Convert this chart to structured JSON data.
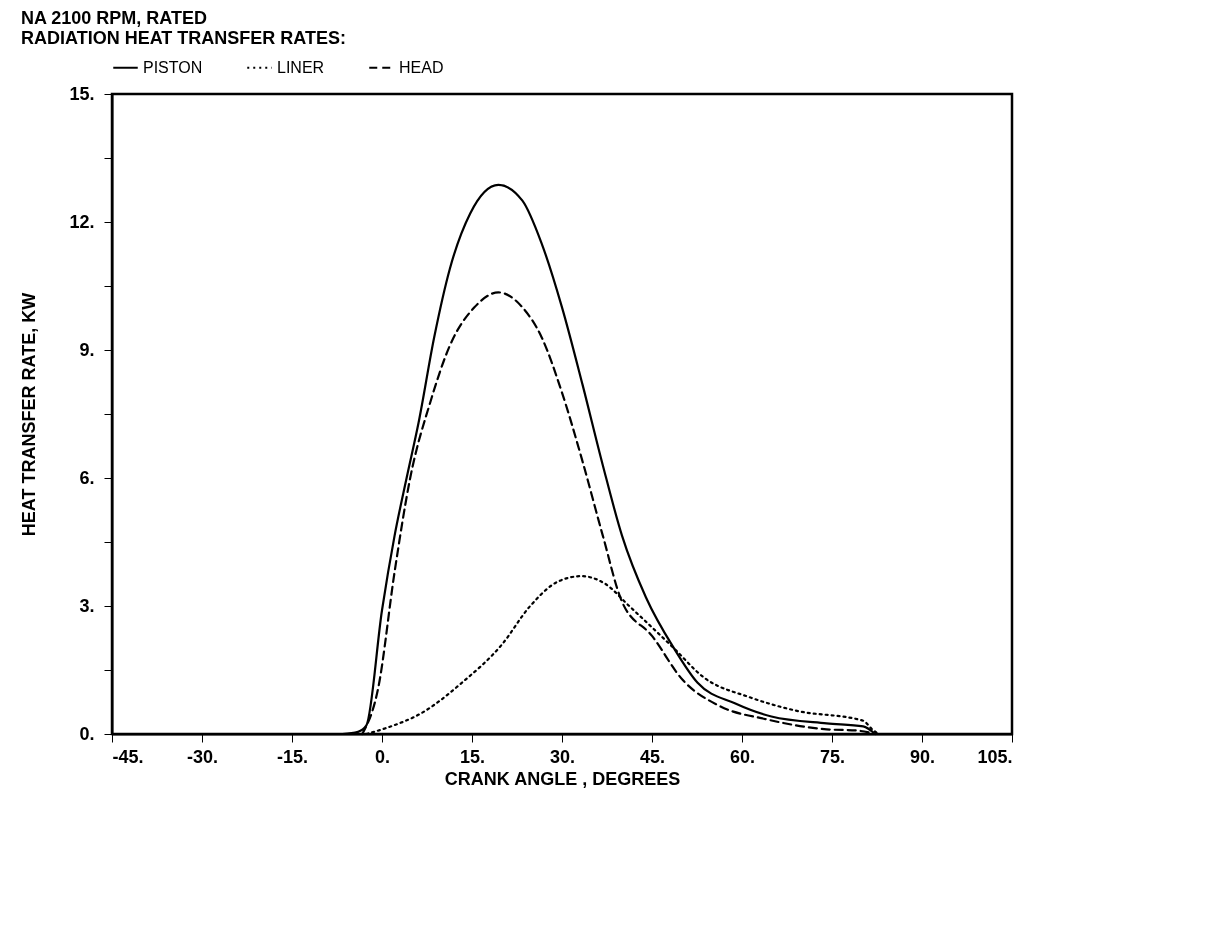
{
  "chart_data": {
    "type": "line",
    "title": [
      "NA 2100 RPM, RATED",
      "RADIATION HEAT TRANSFER RATES:"
    ],
    "xlabel": "CRANK ANGLE , DEGREES",
    "ylabel": "HEAT TRANSFER RATE, KW",
    "xlim": [
      -45,
      105
    ],
    "ylim": [
      0,
      15
    ],
    "xticks": [
      {
        "value": -45,
        "label": "-45."
      },
      {
        "value": -30,
        "label": "-30."
      },
      {
        "value": -15,
        "label": "-15."
      },
      {
        "value": 0,
        "label": "0."
      },
      {
        "value": 15,
        "label": "15."
      },
      {
        "value": 30,
        "label": "30."
      },
      {
        "value": 45,
        "label": "45."
      },
      {
        "value": 60,
        "label": "60."
      },
      {
        "value": 75,
        "label": "75."
      },
      {
        "value": 90,
        "label": "90."
      },
      {
        "value": 105,
        "label": "105."
      }
    ],
    "yticks": [
      {
        "value": 0,
        "label": "0."
      },
      {
        "value": 1.5,
        "label": null
      },
      {
        "value": 3,
        "label": "3."
      },
      {
        "value": 4.5,
        "label": null
      },
      {
        "value": 6,
        "label": "6."
      },
      {
        "value": 7.5,
        "label": null
      },
      {
        "value": 9,
        "label": "9."
      },
      {
        "value": 10.5,
        "label": null
      },
      {
        "value": 12,
        "label": "12."
      },
      {
        "value": 13.5,
        "label": null
      },
      {
        "value": 15,
        "label": "15."
      }
    ],
    "grid": false,
    "legend": "top",
    "marker": "none",
    "series": [
      {
        "name": "PISTON",
        "color": "#000000",
        "line_style": "solid",
        "x": [
          -6.6,
          -4,
          -2.6,
          0,
          2.1,
          4.1,
          6.1,
          8.7,
          11.3,
          14.7,
          19.4,
          23.4,
          26.6,
          30,
          33.4,
          36.8,
          40,
          44,
          48.7,
          52.6,
          58.8,
          64.9,
          74.1,
          80.2,
          82.2
        ],
        "values": [
          0,
          0.05,
          0.2,
          2.9,
          4.65,
          6.0,
          7.3,
          9.3,
          10.9,
          12.2,
          12.87,
          12.5,
          11.5,
          10.0,
          8.2,
          6.3,
          4.65,
          3.2,
          2.0,
          1.2,
          0.72,
          0.41,
          0.25,
          0.18,
          0
        ]
      },
      {
        "name": "LINER",
        "color": "#000000",
        "line_style": "dotted",
        "x": [
          -2.6,
          0.7,
          6.7,
          13.3,
          20,
          24.7,
          29.3,
          33.2,
          37.2,
          41.2,
          48.5,
          53.6,
          61.3,
          68.9,
          80.2,
          81.7,
          82.7
        ],
        "values": [
          0,
          0.14,
          0.5,
          1.2,
          2.1,
          3.0,
          3.57,
          3.7,
          3.52,
          3.0,
          2.03,
          1.33,
          0.86,
          0.55,
          0.31,
          0.11,
          0
        ]
      },
      {
        "name": "HEAD",
        "color": "#000000",
        "line_style": "dashed",
        "x": [
          -3.3,
          -0.6,
          2.1,
          4.7,
          8.1,
          11.3,
          15.4,
          19.4,
          23.4,
          26.6,
          30,
          33.4,
          36.8,
          40,
          45,
          50.1,
          56.2,
          63.9,
          74.1,
          79.2,
          82.2
        ],
        "values": [
          0,
          1.1,
          3.8,
          6.0,
          7.8,
          9.1,
          10.0,
          10.35,
          10.0,
          9.3,
          8.0,
          6.4,
          4.65,
          3.1,
          2.3,
          1.27,
          0.66,
          0.35,
          0.11,
          0.08,
          0
        ]
      }
    ]
  }
}
